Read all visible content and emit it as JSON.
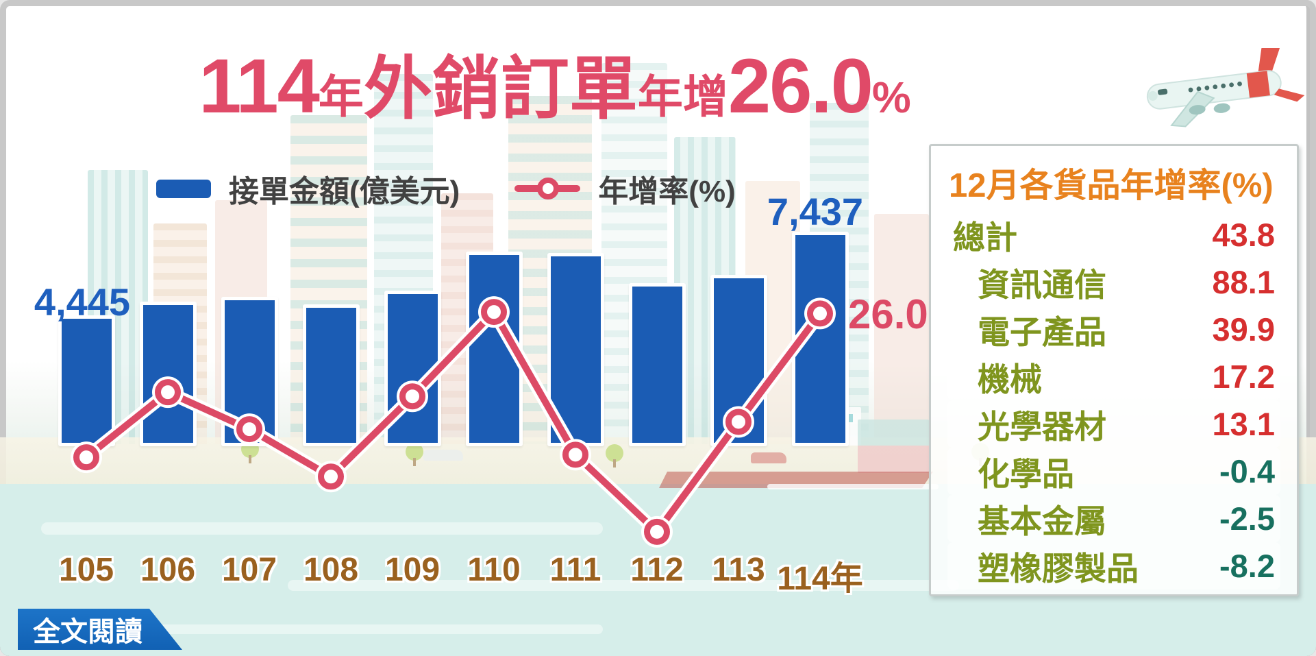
{
  "title": {
    "full": "114年外銷訂單年增26.0%",
    "segments": [
      {
        "text": "114"
      },
      {
        "text": "年"
      },
      {
        "text": "外銷訂單"
      },
      {
        "text": "年增"
      },
      {
        "text": "26.0"
      },
      {
        "text": "%"
      }
    ]
  },
  "legend": {
    "bar_label": "接單金額(億美元)",
    "line_label": "年增率(%)"
  },
  "chart_data": {
    "type": "bar+line",
    "categories": [
      "105",
      "106",
      "107",
      "108",
      "109",
      "110",
      "111",
      "112",
      "113",
      "114年"
    ],
    "series": [
      {
        "name": "接單金額(億美元)",
        "type": "bar",
        "color": "#1b5cb4",
        "values": [
          4445,
          4928,
          5116,
          4845,
          5333,
          6741,
          6668,
          5610,
          5901,
          7437
        ]
      },
      {
        "name": "年增率(%)",
        "type": "line",
        "color": "#dc4a66",
        "values": [
          -1.6,
          10.9,
          3.8,
          -5.3,
          10.1,
          26.3,
          -1.1,
          -15.9,
          5.2,
          26.0
        ]
      }
    ],
    "visible_point_labels": {
      "first_bar": "4,445",
      "last_bar": "7,437",
      "last_line_point": "26.0"
    },
    "xlabel": "",
    "ylabel": "",
    "grid": false,
    "legend_position": "top"
  },
  "panel": {
    "title": "12月各貨品年增率(%)",
    "rows": [
      {
        "label": "總計",
        "value": "43.8",
        "indent": false
      },
      {
        "label": "資訊通信",
        "value": "88.1",
        "indent": true
      },
      {
        "label": "電子產品",
        "value": "39.9",
        "indent": true
      },
      {
        "label": "機械",
        "value": "17.2",
        "indent": true
      },
      {
        "label": "光學器材",
        "value": "13.1",
        "indent": true
      },
      {
        "label": "化學品",
        "value": "-0.4",
        "indent": true
      },
      {
        "label": "基本金屬",
        "value": "-2.5",
        "indent": true
      },
      {
        "label": "塑橡膠製品",
        "value": "-8.2",
        "indent": true
      }
    ]
  },
  "footer": {
    "read_more_label": "全文閱讀"
  },
  "colors": {
    "title_pink": "#e04a68",
    "bar_blue": "#1b5cb4",
    "line_pink": "#dc4a66",
    "value_label_blue": "#1e5fbe",
    "xaxis_brown": "#9a611f",
    "panel_title_orange": "#e8821e",
    "category_olive": "#7f951e",
    "positive_red": "#d62f2f",
    "negative_teal": "#17705f",
    "button_blue": "#1568be",
    "water_teal": "#d6eeea"
  }
}
